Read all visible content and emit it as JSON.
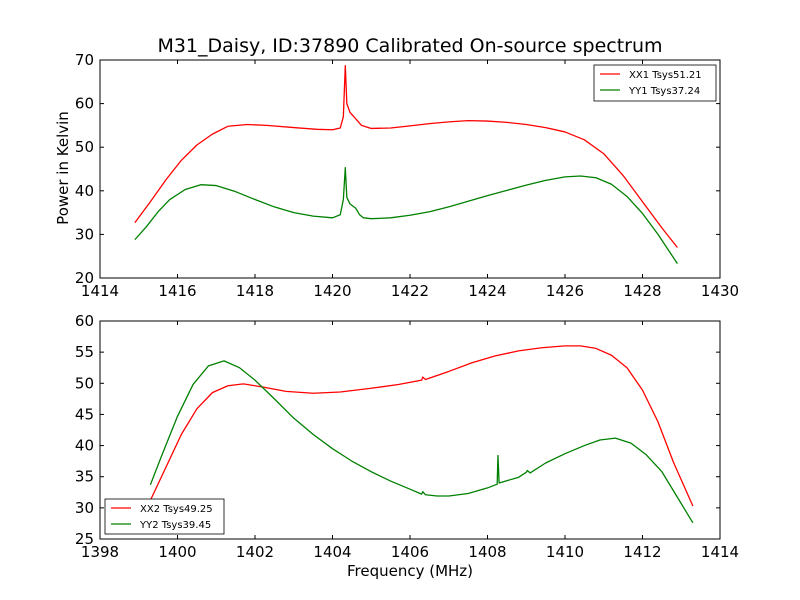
{
  "figure": {
    "title": "M31_Daisy, ID:37890 Calibrated On-source spectrum",
    "xlabel": "Frequency (MHz)",
    "ylabel": "Power in Kelvin"
  },
  "chart_data": [
    {
      "type": "line",
      "title": "M31_Daisy, ID:37890 Calibrated On-source spectrum",
      "xlabel": "",
      "ylabel": "Power in Kelvin",
      "xlim": [
        1414,
        1430
      ],
      "ylim": [
        20,
        70
      ],
      "xticks": [
        1414,
        1416,
        1418,
        1420,
        1422,
        1424,
        1426,
        1428,
        1430
      ],
      "yticks": [
        20,
        30,
        40,
        50,
        60,
        70
      ],
      "grid": false,
      "legend_position": "top-right",
      "series": [
        {
          "name": "XX1 Tsys51.21",
          "color": "#ff0000",
          "points": [
            [
              1414.9,
              32.7
            ],
            [
              1415.3,
              37.5
            ],
            [
              1415.7,
              42.5
            ],
            [
              1416.1,
              47.0
            ],
            [
              1416.5,
              50.5
            ],
            [
              1416.9,
              53.0
            ],
            [
              1417.3,
              54.8
            ],
            [
              1417.8,
              55.2
            ],
            [
              1418.3,
              55.0
            ],
            [
              1419.0,
              54.5
            ],
            [
              1419.6,
              54.1
            ],
            [
              1420.0,
              54.0
            ],
            [
              1420.2,
              54.4
            ],
            [
              1420.28,
              57.0
            ],
            [
              1420.33,
              68.7
            ],
            [
              1420.37,
              60.0
            ],
            [
              1420.45,
              58.0
            ],
            [
              1420.6,
              56.5
            ],
            [
              1420.75,
              55.0
            ],
            [
              1421.0,
              54.3
            ],
            [
              1421.5,
              54.4
            ],
            [
              1422.0,
              54.9
            ],
            [
              1422.5,
              55.4
            ],
            [
              1423.0,
              55.8
            ],
            [
              1423.5,
              56.1
            ],
            [
              1424.0,
              56.0
            ],
            [
              1424.5,
              55.7
            ],
            [
              1425.0,
              55.2
            ],
            [
              1425.5,
              54.5
            ],
            [
              1426.0,
              53.5
            ],
            [
              1426.5,
              51.7
            ],
            [
              1427.0,
              48.5
            ],
            [
              1427.5,
              43.5
            ],
            [
              1428.0,
              37.5
            ],
            [
              1428.5,
              31.5
            ],
            [
              1428.9,
              27.0
            ]
          ]
        },
        {
          "name": "YY1 Tsys37.24",
          "color": "#008000",
          "points": [
            [
              1414.9,
              28.8
            ],
            [
              1415.2,
              31.8
            ],
            [
              1415.5,
              35.2
            ],
            [
              1415.8,
              38.0
            ],
            [
              1416.2,
              40.3
            ],
            [
              1416.6,
              41.4
            ],
            [
              1417.0,
              41.2
            ],
            [
              1417.5,
              39.8
            ],
            [
              1418.0,
              38.0
            ],
            [
              1418.5,
              36.3
            ],
            [
              1419.0,
              35.0
            ],
            [
              1419.5,
              34.2
            ],
            [
              1420.0,
              33.8
            ],
            [
              1420.2,
              34.5
            ],
            [
              1420.28,
              38.0
            ],
            [
              1420.33,
              45.3
            ],
            [
              1420.37,
              38.5
            ],
            [
              1420.45,
              37.0
            ],
            [
              1420.6,
              36.0
            ],
            [
              1420.7,
              34.5
            ],
            [
              1420.8,
              33.8
            ],
            [
              1421.0,
              33.6
            ],
            [
              1421.5,
              33.8
            ],
            [
              1422.0,
              34.4
            ],
            [
              1422.5,
              35.2
            ],
            [
              1423.0,
              36.3
            ],
            [
              1423.5,
              37.6
            ],
            [
              1424.0,
              38.9
            ],
            [
              1424.5,
              40.1
            ],
            [
              1425.0,
              41.3
            ],
            [
              1425.5,
              42.4
            ],
            [
              1426.0,
              43.2
            ],
            [
              1426.4,
              43.4
            ],
            [
              1426.8,
              43.0
            ],
            [
              1427.2,
              41.5
            ],
            [
              1427.6,
              38.7
            ],
            [
              1428.0,
              34.8
            ],
            [
              1428.4,
              30.0
            ],
            [
              1428.9,
              23.3
            ]
          ]
        }
      ]
    },
    {
      "type": "line",
      "title": "",
      "xlabel": "Frequency (MHz)",
      "ylabel": "",
      "xlim": [
        1398,
        1414
      ],
      "ylim": [
        25,
        60
      ],
      "xticks": [
        1398,
        1400,
        1402,
        1404,
        1406,
        1408,
        1410,
        1412,
        1414
      ],
      "yticks": [
        25,
        30,
        35,
        40,
        45,
        50,
        55,
        60
      ],
      "grid": false,
      "legend_position": "bottom-left",
      "series": [
        {
          "name": "XX2 Tsys49.25",
          "color": "#ff0000",
          "points": [
            [
              1399.3,
              31.2
            ],
            [
              1399.7,
              36.5
            ],
            [
              1400.1,
              41.8
            ],
            [
              1400.5,
              45.9
            ],
            [
              1400.9,
              48.5
            ],
            [
              1401.3,
              49.6
            ],
            [
              1401.7,
              49.9
            ],
            [
              1402.2,
              49.4
            ],
            [
              1402.8,
              48.7
            ],
            [
              1403.5,
              48.4
            ],
            [
              1404.2,
              48.6
            ],
            [
              1405.0,
              49.2
            ],
            [
              1405.7,
              49.8
            ],
            [
              1406.3,
              50.5
            ],
            [
              1406.33,
              51.0
            ],
            [
              1406.4,
              50.6
            ],
            [
              1407.0,
              51.9
            ],
            [
              1407.6,
              53.3
            ],
            [
              1408.2,
              54.4
            ],
            [
              1408.8,
              55.2
            ],
            [
              1409.4,
              55.7
            ],
            [
              1410.0,
              56.0
            ],
            [
              1410.4,
              56.0
            ],
            [
              1410.8,
              55.6
            ],
            [
              1411.2,
              54.5
            ],
            [
              1411.6,
              52.5
            ],
            [
              1412.0,
              48.9
            ],
            [
              1412.4,
              43.8
            ],
            [
              1412.8,
              37.3
            ],
            [
              1413.3,
              30.3
            ]
          ]
        },
        {
          "name": "YY2 Tsys39.45",
          "color": "#008000",
          "points": [
            [
              1399.3,
              33.7
            ],
            [
              1399.6,
              38.5
            ],
            [
              1400.0,
              44.7
            ],
            [
              1400.4,
              49.8
            ],
            [
              1400.8,
              52.8
            ],
            [
              1401.2,
              53.6
            ],
            [
              1401.6,
              52.5
            ],
            [
              1402.0,
              50.5
            ],
            [
              1402.5,
              47.5
            ],
            [
              1403.0,
              44.4
            ],
            [
              1403.5,
              41.8
            ],
            [
              1404.0,
              39.5
            ],
            [
              1404.5,
              37.5
            ],
            [
              1405.0,
              35.8
            ],
            [
              1405.5,
              34.3
            ],
            [
              1406.0,
              33.0
            ],
            [
              1406.3,
              32.2
            ],
            [
              1406.33,
              32.6
            ],
            [
              1406.4,
              32.1
            ],
            [
              1406.7,
              31.9
            ],
            [
              1407.0,
              31.9
            ],
            [
              1407.5,
              32.3
            ],
            [
              1408.0,
              33.2
            ],
            [
              1408.25,
              33.8
            ],
            [
              1408.27,
              38.4
            ],
            [
              1408.3,
              34.0
            ],
            [
              1408.8,
              34.9
            ],
            [
              1409.0,
              35.7
            ],
            [
              1409.03,
              36.0
            ],
            [
              1409.1,
              35.6
            ],
            [
              1409.5,
              37.2
            ],
            [
              1410.0,
              38.7
            ],
            [
              1410.5,
              40.0
            ],
            [
              1410.9,
              40.9
            ],
            [
              1411.3,
              41.2
            ],
            [
              1411.7,
              40.4
            ],
            [
              1412.1,
              38.5
            ],
            [
              1412.5,
              35.8
            ],
            [
              1412.9,
              31.7
            ],
            [
              1413.3,
              27.6
            ]
          ]
        }
      ]
    }
  ]
}
